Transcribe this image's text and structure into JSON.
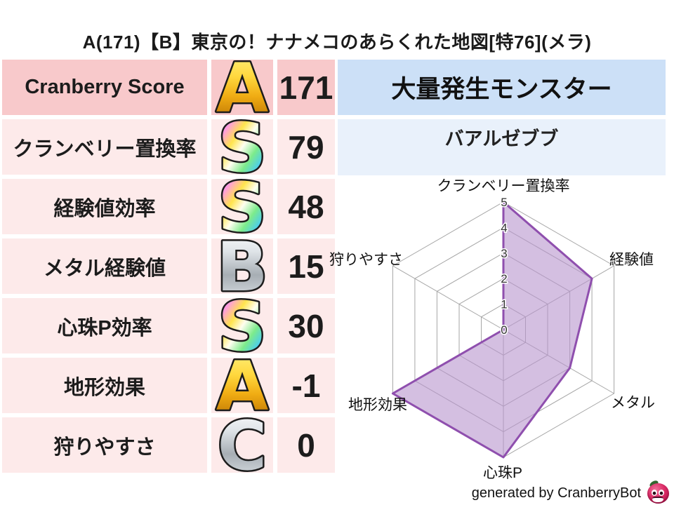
{
  "header": {
    "title": "A(171)【B】東京の！ナナメコのあらくれた地図[特76](メラ)"
  },
  "stats_table": {
    "rows": [
      {
        "label": "Cranberry Score",
        "grade": "A",
        "grade_style": "gold",
        "value": "171"
      },
      {
        "label": "クランベリー置換率",
        "grade": "S",
        "grade_style": "rainbow",
        "value": "79"
      },
      {
        "label": "経験値効率",
        "grade": "S",
        "grade_style": "rainbow",
        "value": "48"
      },
      {
        "label": "メタル経験値",
        "grade": "B",
        "grade_style": "silver",
        "value": "15"
      },
      {
        "label": "心珠P効率",
        "grade": "S",
        "grade_style": "rainbow",
        "value": "30"
      },
      {
        "label": "地形効果",
        "grade": "A",
        "grade_style": "gold",
        "value": "-1"
      },
      {
        "label": "狩りやすさ",
        "grade": "C",
        "grade_style": "silver",
        "value": "0"
      }
    ]
  },
  "monster_panel": {
    "header": "大量発生モンスター",
    "name": "バアルゼブブ"
  },
  "chart_data": {
    "type": "radar",
    "categories": [
      "クランベリー置換率",
      "経験値",
      "メタル",
      "心珠P",
      "地形効果",
      "狩りやすさ"
    ],
    "values": [
      5,
      4,
      3,
      5,
      5,
      0
    ],
    "scale": {
      "min": 0,
      "max": 5,
      "ticks": [
        0,
        1,
        2,
        3,
        4,
        5
      ]
    },
    "grid": true,
    "legend": "none",
    "fill_color": "#b794cd",
    "stroke_color": "#8f4fae",
    "grid_color": "#a6a6a6"
  },
  "footer": {
    "credit": "generated by CranberryBot",
    "logo": "cranberry-bot-icon"
  },
  "colors": {
    "emphasis_row_bg": "#f8c9cb",
    "row_bg": "#fdeaea",
    "monster_header_bg": "#cce0f7",
    "monster_name_bg": "#e9f1fb",
    "grade_gold": "#f0ac13",
    "grade_silver": "#a7aeb4",
    "grade_rainbow": "#ff5fd0"
  }
}
